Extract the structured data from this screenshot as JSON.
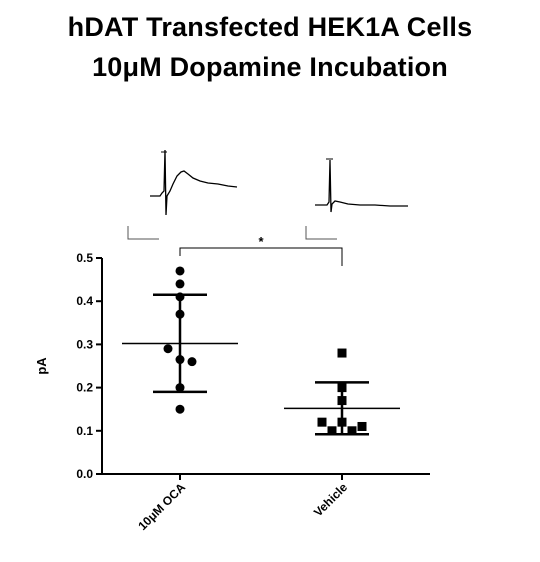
{
  "title_line1": "hDAT Transfected HEK1A Cells",
  "title_line2": "10μM Dopamine Incubation",
  "chart_data": {
    "type": "scatter",
    "ylabel": "pA",
    "ylim": [
      0.0,
      0.5
    ],
    "yticks": [
      "0.0",
      "0.1",
      "0.2",
      "0.3",
      "0.4",
      "0.5"
    ],
    "grid": false,
    "categories": [
      "10μM OCA",
      "Vehicle"
    ],
    "series": [
      {
        "category": "10μM OCA",
        "marker": "circle",
        "values": [
          0.47,
          0.44,
          0.41,
          0.37,
          0.29,
          0.265,
          0.26,
          0.2,
          0.15
        ],
        "mean": 0.302,
        "sd_upper": 0.415,
        "sd_lower": 0.19
      },
      {
        "category": "Vehicle",
        "marker": "square",
        "values": [
          0.28,
          0.2,
          0.17,
          0.12,
          0.12,
          0.11,
          0.1,
          0.1
        ],
        "mean": 0.152,
        "sd_upper": 0.212,
        "sd_lower": 0.092
      }
    ],
    "significance": "*"
  }
}
